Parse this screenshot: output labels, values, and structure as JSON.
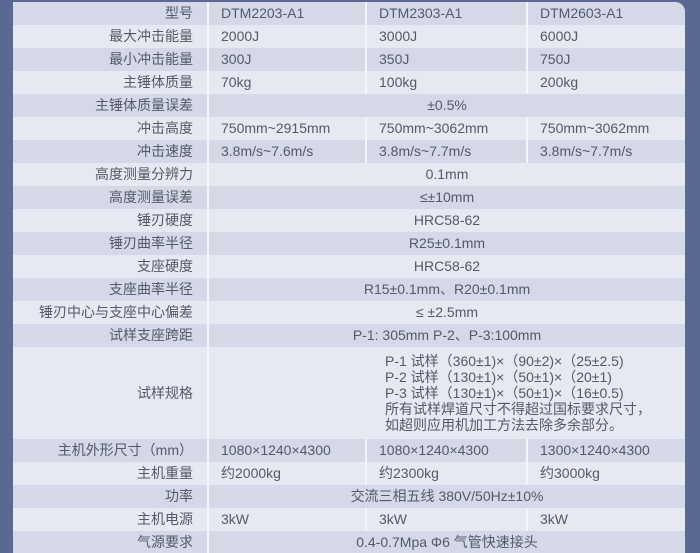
{
  "rows": [
    {
      "label": "型号",
      "values": [
        "DTM2203-A1",
        "DTM2303-A1",
        "DTM2603-A1"
      ]
    },
    {
      "label": "最大冲击能量",
      "values": [
        "2000J",
        "3000J",
        "6000J"
      ]
    },
    {
      "label": "最小冲击能量",
      "values": [
        "300J",
        "350J",
        "750J"
      ]
    },
    {
      "label": "主锤体质量",
      "values": [
        "70kg",
        "100kg",
        "200kg"
      ]
    },
    {
      "label": "主锤体质量误差",
      "merged": "±0.5%"
    },
    {
      "label": "冲击高度",
      "values": [
        "750mm~2915mm",
        "750mm~3062mm",
        "750mm~3062mm"
      ]
    },
    {
      "label": "冲击速度",
      "values": [
        "3.8m/s~7.6m/s",
        "3.8m/s~7.7m/s",
        "3.8m/s~7.7m/s"
      ]
    },
    {
      "label": "高度测量分辨力",
      "merged": "0.1mm"
    },
    {
      "label": "高度测量误差",
      "merged": "≤±10mm"
    },
    {
      "label": "锤刃硬度",
      "merged": "HRC58-62"
    },
    {
      "label": "锤刃曲率半径",
      "merged": "R25±0.1mm"
    },
    {
      "label": "支座硬度",
      "merged": "HRC58-62"
    },
    {
      "label": "支座曲率半径",
      "merged": "R15±0.1mm、R20±0.1mm"
    },
    {
      "label": "锤刃中心与支座中心偏差",
      "merged": "≤ ±2.5mm"
    },
    {
      "label": "试样支座跨距",
      "merged": "P-1: 305mm P-2、P-3:100mm"
    },
    {
      "label": "试样规格",
      "lines": [
        "P-1 试样（360±1)×（90±2)×（25±2.5)",
        "P-2 试样（130±1)×（50±1)×（20±1)",
        "P-3 试样（130±1)×（50±1)×（16±0.5)",
        "所有试样焊道尺寸不得超过国标要求尺寸，",
        "如超则应用机加工方法去除多余部分。"
      ]
    },
    {
      "label": "主机外形尺寸（mm）",
      "values": [
        "1080×1240×4300",
        "1080×1240×4300",
        "1300×1240×4300"
      ]
    },
    {
      "label": "主机重量",
      "values": [
        "约2000kg",
        "约2300kg",
        "约3000kg"
      ]
    },
    {
      "label": "功率",
      "merged": "交流三相五线 380V/50Hz±10%"
    },
    {
      "label": "主机电源",
      "values": [
        "3kW",
        "3kW",
        "3kW"
      ]
    },
    {
      "label": "气源要求",
      "merged": "0.4-0.7Mpa Φ6 气管快速接头"
    }
  ]
}
